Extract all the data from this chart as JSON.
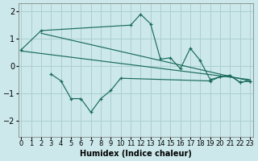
{
  "xlabel": "Humidex (Indice chaleur)",
  "background_color": "#cce8ea",
  "grid_color": "#aacfd2",
  "line_color": "#1a6b5a",
  "xlim": [
    -0.3,
    23.3
  ],
  "ylim": [
    -2.6,
    2.3
  ],
  "xticks": [
    0,
    1,
    2,
    3,
    4,
    5,
    6,
    7,
    8,
    9,
    10,
    11,
    12,
    13,
    14,
    15,
    16,
    17,
    18,
    19,
    20,
    21,
    22,
    23
  ],
  "yticks": [
    -2,
    -1,
    0,
    1,
    2
  ],
  "series_upper_x": [
    0,
    2,
    11,
    12,
    13,
    14,
    15,
    16,
    17,
    18,
    19,
    20,
    21,
    22,
    23
  ],
  "series_upper_y": [
    0.6,
    1.3,
    1.5,
    1.9,
    1.55,
    0.25,
    0.3,
    -0.1,
    0.65,
    0.2,
    -0.5,
    -0.4,
    -0.35,
    -0.6,
    -0.55
  ],
  "series_lower_x": [
    3,
    4,
    5,
    6,
    7,
    8,
    9,
    10,
    19,
    20,
    21,
    22,
    23
  ],
  "series_lower_y": [
    -0.3,
    -0.55,
    -1.2,
    -1.2,
    -1.7,
    -1.2,
    -0.9,
    -0.45,
    -0.55,
    -0.4,
    -0.35,
    -0.6,
    -0.55
  ],
  "trend1_x": [
    0,
    23
  ],
  "trend1_y": [
    0.55,
    -0.5
  ],
  "trend2_x": [
    2,
    23
  ],
  "trend2_y": [
    1.2,
    -0.55
  ]
}
